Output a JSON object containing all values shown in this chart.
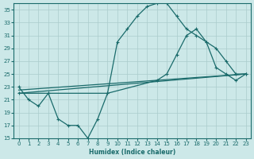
{
  "xlabel": "Humidex (Indice chaleur)",
  "bg_color": "#cce8e8",
  "grid_color": "#aacccc",
  "line_color": "#1a6b6b",
  "xlim": [
    -0.5,
    23.5
  ],
  "ylim": [
    15,
    36
  ],
  "yticks": [
    15,
    17,
    19,
    21,
    23,
    25,
    27,
    29,
    31,
    33,
    35
  ],
  "xticks": [
    0,
    1,
    2,
    3,
    4,
    5,
    6,
    7,
    8,
    9,
    10,
    11,
    12,
    13,
    14,
    15,
    16,
    17,
    18,
    19,
    20,
    21,
    22,
    23
  ],
  "line1_x": [
    0,
    1,
    2,
    3,
    4,
    5,
    6,
    7,
    8,
    9,
    10,
    11,
    12,
    13,
    14,
    15,
    16,
    17,
    18,
    19,
    20,
    21,
    22,
    23
  ],
  "line1_y": [
    23,
    21,
    20,
    22,
    18,
    17,
    17,
    15,
    18,
    22,
    30,
    32,
    34,
    35.5,
    36,
    36,
    34,
    32,
    31,
    30,
    26,
    25,
    24,
    25
  ],
  "line2_x": [
    0,
    23
  ],
  "line2_y": [
    22,
    25
  ],
  "line3_x": [
    0,
    23
  ],
  "line3_y": [
    22.5,
    25
  ],
  "line4_x": [
    0,
    3,
    9,
    14,
    15,
    16,
    17,
    18,
    19,
    20,
    21,
    22,
    23
  ],
  "line4_y": [
    22,
    22,
    22,
    24,
    25,
    28,
    31,
    32,
    30,
    29,
    27,
    25,
    25
  ]
}
